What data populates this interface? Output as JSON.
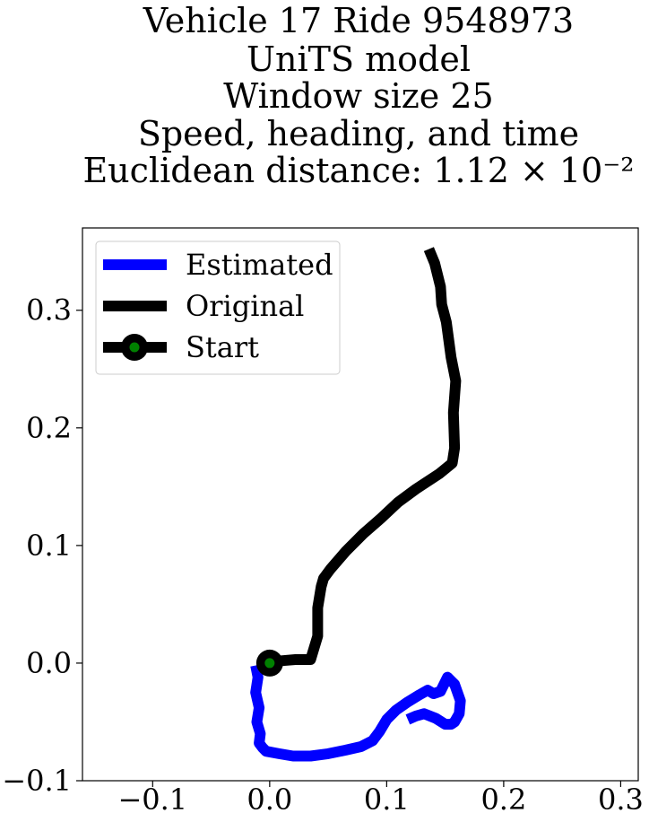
{
  "chart_data": {
    "type": "line",
    "title_lines": [
      "Vehicle 17 Ride 9548973",
      "UniTS model",
      "Window size 25",
      "Speed, heading, and time",
      "Euclidean distance: 1.12 × 10⁻²"
    ],
    "xlabel": "",
    "ylabel": "",
    "xlim": [
      -0.16,
      0.315
    ],
    "ylim": [
      -0.1,
      0.37
    ],
    "xticks": [
      -0.1,
      0.0,
      0.1,
      0.2,
      0.3
    ],
    "xtick_labels": [
      "−0.1",
      "0.0",
      "0.1",
      "0.2",
      "0.3"
    ],
    "yticks": [
      -0.1,
      0.0,
      0.1,
      0.2,
      0.3
    ],
    "ytick_labels": [
      "−0.1",
      "0.0",
      "0.1",
      "0.2",
      "0.3"
    ],
    "grid": false,
    "legend_position": "top-left",
    "series": [
      {
        "name": "Estimated",
        "color": "#0000ff",
        "x": [
          -0.012,
          -0.01,
          -0.012,
          -0.009,
          -0.011,
          -0.008,
          -0.009,
          -0.006,
          -0.003,
          0.008,
          0.02,
          0.035,
          0.05,
          0.065,
          0.078,
          0.088,
          0.094,
          0.1,
          0.108,
          0.118,
          0.128,
          0.135,
          0.14,
          0.146,
          0.152,
          0.158,
          0.163,
          0.162,
          0.158,
          0.155,
          0.15,
          0.142,
          0.132,
          0.125,
          0.118
        ],
        "y": [
          -0.002,
          -0.012,
          -0.025,
          -0.038,
          -0.05,
          -0.06,
          -0.068,
          -0.072,
          -0.075,
          -0.077,
          -0.079,
          -0.079,
          -0.077,
          -0.074,
          -0.071,
          -0.066,
          -0.058,
          -0.048,
          -0.04,
          -0.033,
          -0.027,
          -0.023,
          -0.026,
          -0.024,
          -0.012,
          -0.018,
          -0.032,
          -0.043,
          -0.05,
          -0.052,
          -0.052,
          -0.047,
          -0.043,
          -0.045,
          -0.048
        ]
      },
      {
        "name": "Original",
        "color": "#000000",
        "x": [
          0.0,
          0.01,
          0.022,
          0.035,
          0.041,
          0.041,
          0.044,
          0.046,
          0.052,
          0.065,
          0.08,
          0.095,
          0.11,
          0.125,
          0.145,
          0.156,
          0.158,
          0.157,
          0.159,
          0.155,
          0.151,
          0.147,
          0.146,
          0.141,
          0.136
        ],
        "y": [
          0.0,
          0.002,
          0.003,
          0.003,
          0.023,
          0.047,
          0.065,
          0.072,
          0.08,
          0.095,
          0.11,
          0.123,
          0.137,
          0.148,
          0.161,
          0.17,
          0.183,
          0.213,
          0.24,
          0.26,
          0.29,
          0.305,
          0.32,
          0.34,
          0.352
        ]
      }
    ],
    "start_point": {
      "name": "Start",
      "x": 0.0,
      "y": 0.0,
      "face_color": "#008000",
      "edge_color": "#000000"
    },
    "legend_entries": [
      "Estimated",
      "Original",
      "Start"
    ]
  }
}
